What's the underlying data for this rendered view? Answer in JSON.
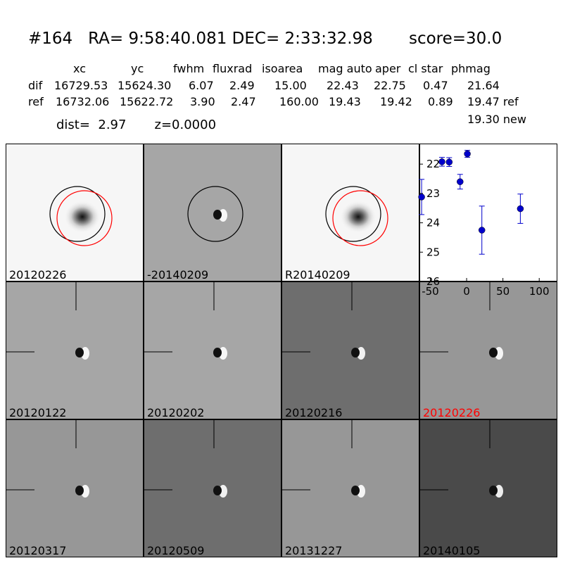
{
  "header": {
    "title": "#164   RA= 9:58:40.081 DEC= 2:33:32.98       score=30.0",
    "columns": [
      "xc",
      "yc",
      "fwhm",
      "fluxrad",
      "isoarea",
      "mag auto",
      "aper",
      "cl star",
      "phmag"
    ],
    "rows": [
      {
        "label": "dif",
        "values": [
          "16729.53",
          "15624.30",
          "6.07",
          "2.49",
          "15.00",
          "22.43",
          "22.75",
          "0.47",
          "21.64"
        ]
      },
      {
        "label": "ref",
        "values": [
          "16732.06",
          "15622.72",
          "3.90",
          "2.47",
          "160.00",
          "19.43",
          "19.42",
          "0.89",
          "19.47 ref"
        ]
      }
    ],
    "dist_line": "dist=  2.97       z=0.0000",
    "new_mag": "19.30 new"
  },
  "panels": [
    {
      "label": "20120226",
      "style": "star",
      "circles": "both",
      "color": "#000000"
    },
    {
      "label": "-20140209",
      "style": "dipole-light",
      "circles": "black",
      "color": "#000000"
    },
    {
      "label": "R20140209",
      "style": "star",
      "circles": "both",
      "color": "#000000"
    },
    {
      "label": "20120122",
      "style": "dipole-light",
      "circles": "none",
      "color": "#000000"
    },
    {
      "label": "20120202",
      "style": "dipole-light",
      "circles": "none",
      "color": "#000000"
    },
    {
      "label": "20120216",
      "style": "dipole-dark",
      "circles": "none",
      "color": "#000000"
    },
    {
      "label": "20120226",
      "style": "dipole-mid",
      "circles": "none",
      "color": "#ff0000"
    },
    {
      "label": "20120317",
      "style": "dipole-mid",
      "circles": "none",
      "color": "#000000"
    },
    {
      "label": "20120509",
      "style": "dipole-dark",
      "circles": "none",
      "color": "#000000"
    },
    {
      "label": "20131227",
      "style": "dipole-mid",
      "circles": "none",
      "color": "#000000"
    },
    {
      "label": "20140105",
      "style": "dipole-verydark",
      "circles": "none",
      "color": "#000000"
    }
  ],
  "chart_data": {
    "type": "scatter",
    "title": "",
    "xlabel": "",
    "ylabel": "",
    "xlim": [
      -65,
      125
    ],
    "ylim": [
      26,
      21.3
    ],
    "y_inverted": true,
    "xticks": [
      "-50",
      "0",
      "50",
      "100"
    ],
    "yticks": [
      "22",
      "23",
      "24",
      "25",
      "26"
    ],
    "marker_color": "#0000cc",
    "series": [
      {
        "points": [
          {
            "x": -62,
            "y": 23.12,
            "err": 0.6
          },
          {
            "x": -34,
            "y": 21.92,
            "err": 0.15
          },
          {
            "x": -24,
            "y": 21.93,
            "err": 0.15
          },
          {
            "x": -9,
            "y": 22.6,
            "err": 0.25
          },
          {
            "x": 1,
            "y": 21.65,
            "err": 0.12
          },
          {
            "x": 21,
            "y": 24.25,
            "err": 0.82
          },
          {
            "x": 74,
            "y": 23.52,
            "err": 0.5
          }
        ]
      }
    ]
  }
}
